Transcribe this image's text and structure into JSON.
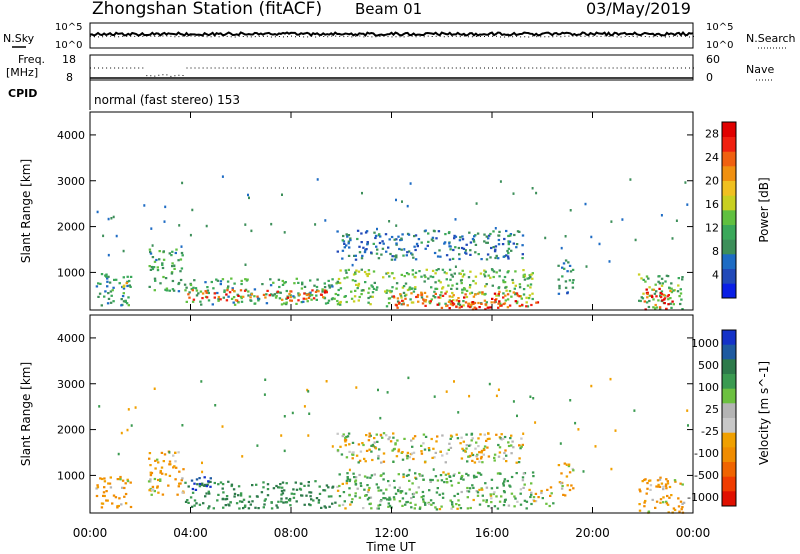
{
  "header": {
    "station": "Zhongshan Station (fitACF)",
    "beam": "Beam 01",
    "date": "03/May/2019"
  },
  "status_panels": {
    "nsky_label": "N.Sky",
    "nsky_ticks": [
      "10^5",
      "10^0"
    ],
    "nsearch_label": "N.Search",
    "nsearch_ticks": [
      "10^5",
      "10^0"
    ],
    "freq_label_1": "Freq.",
    "freq_label_2": "[MHz]",
    "freq_ticks": [
      "18",
      "8"
    ],
    "nave_label": "Nave",
    "nave_ticks": [
      "60",
      "0"
    ],
    "cpid_label": "CPID",
    "cpid_text": "normal (fast stereo) 153"
  },
  "colors": {
    "power_scale": [
      "#0a1fe6",
      "#2149b8",
      "#1e6cc4",
      "#3d8f5a",
      "#3aa85a",
      "#60c040",
      "#c8d020",
      "#f0c020",
      "#f09010",
      "#f06010",
      "#f02010",
      "#e00000"
    ],
    "velocity_scale": [
      "#1432c8",
      "#1e5aa0",
      "#2d7a4a",
      "#3a9a50",
      "#6cc040",
      "#b4b4b4",
      "#c8c8c8",
      "#f0a000",
      "#f08c00",
      "#f06400",
      "#f03c00",
      "#e01000"
    ]
  },
  "chart_data": [
    {
      "type": "heatmap",
      "panel": "power",
      "xlabel": "Time UT",
      "ylabel": "Slant Range [km]",
      "x_ticks": [
        "00:00",
        "04:00",
        "08:00",
        "12:00",
        "16:00",
        "20:00",
        "00:00"
      ],
      "xlim": [
        0,
        24
      ],
      "ylim": [
        180,
        4500
      ],
      "y_ticks": [
        1000,
        2000,
        3000,
        4000
      ],
      "colorbar_label": "Power [dB]",
      "colorbar_ticks": [
        4,
        8,
        12,
        16,
        20,
        24,
        28
      ],
      "colorbar_range": [
        0,
        30
      ],
      "regions": [
        {
          "t0": 0.2,
          "t1": 1.6,
          "r0": 300,
          "r1": 1000,
          "value": 9
        },
        {
          "t0": 1.2,
          "t1": 1.6,
          "r0": 550,
          "r1": 800,
          "value": 17
        },
        {
          "t0": 2.3,
          "t1": 3.7,
          "r0": 600,
          "r1": 1550,
          "value": 11
        },
        {
          "t0": 3.7,
          "t1": 9.8,
          "r0": 300,
          "r1": 900,
          "value": 11
        },
        {
          "t0": 3.8,
          "t1": 9.5,
          "r0": 400,
          "r1": 650,
          "value": 24
        },
        {
          "t0": 9.8,
          "t1": 17.6,
          "r0": 280,
          "r1": 1100,
          "value": 13
        },
        {
          "t0": 9.8,
          "t1": 17.2,
          "r0": 1300,
          "r1": 1950,
          "value": 7
        },
        {
          "t0": 12.0,
          "t1": 17.8,
          "r0": 250,
          "r1": 600,
          "value": 24
        },
        {
          "t0": 14.2,
          "t1": 16.0,
          "r0": 200,
          "r1": 400,
          "value": 28
        },
        {
          "t0": 18.6,
          "t1": 19.2,
          "r0": 500,
          "r1": 1300,
          "value": 8
        },
        {
          "t0": 21.8,
          "t1": 23.6,
          "r0": 200,
          "r1": 1000,
          "value": 12
        },
        {
          "t0": 22.0,
          "t1": 23.2,
          "r0": 200,
          "r1": 700,
          "value": 26
        }
      ]
    },
    {
      "type": "heatmap",
      "panel": "velocity",
      "xlabel": "Time UT",
      "ylabel": "Slant Range [km]",
      "x_ticks": [
        "00:00",
        "04:00",
        "08:00",
        "12:00",
        "16:00",
        "20:00",
        "00:00"
      ],
      "xlim": [
        0,
        24
      ],
      "ylim": [
        180,
        4500
      ],
      "y_ticks": [
        1000,
        2000,
        3000,
        4000
      ],
      "colorbar_label": "Velocity [m s^-1]",
      "colorbar_ticks": [
        "1000",
        "500",
        "100",
        "25",
        "-25",
        "-100",
        "-500",
        "-1000"
      ],
      "regions": [
        {
          "t0": 0.2,
          "t1": 1.6,
          "r0": 300,
          "r1": 1000,
          "value": -100
        },
        {
          "t0": 2.3,
          "t1": 3.7,
          "r0": 600,
          "r1": 1550,
          "value": -100
        },
        {
          "t0": 3.7,
          "t1": 9.8,
          "r0": 300,
          "r1": 900,
          "value": 300
        },
        {
          "t0": 4.0,
          "t1": 4.8,
          "r0": 700,
          "r1": 1000,
          "value": 800
        },
        {
          "t0": 9.8,
          "t1": 17.6,
          "r0": 280,
          "r1": 1100,
          "value": 100
        },
        {
          "t0": 9.8,
          "t1": 17.2,
          "r0": 1300,
          "r1": 1950,
          "value": 0
        },
        {
          "t0": 17.6,
          "t1": 18.4,
          "r0": 350,
          "r1": 800,
          "value": 0
        },
        {
          "t0": 18.6,
          "t1": 19.2,
          "r0": 500,
          "r1": 1300,
          "value": -100
        },
        {
          "t0": 21.8,
          "t1": 23.6,
          "r0": 200,
          "r1": 1000,
          "value": -100
        }
      ]
    }
  ]
}
